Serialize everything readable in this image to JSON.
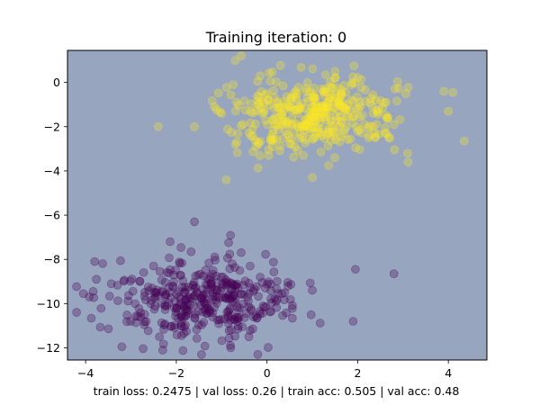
{
  "chart_data": {
    "type": "scatter",
    "title": "Training iteration: 0",
    "xlabel": "",
    "ylabel": "",
    "xlim": [
      -4.4,
      4.85
    ],
    "ylim": [
      -12.55,
      1.45
    ],
    "x_ticks": [
      -4,
      -2,
      0,
      2,
      4
    ],
    "x_tick_labels": [
      "−4",
      "−2",
      "0",
      "2",
      "4"
    ],
    "y_ticks": [
      0,
      -2,
      -4,
      -6,
      -8,
      -10,
      -12
    ],
    "y_tick_labels": [
      "0",
      "−2",
      "−4",
      "−6",
      "−8",
      "−10",
      "−12"
    ],
    "grid": false,
    "legend": "none",
    "background_color": "#97a5bf",
    "series": [
      {
        "color": "#440154",
        "alpha": 0.3,
        "cluster_center": [
          -1.5,
          -9.8
        ],
        "cluster_std": [
          1.0,
          0.9
        ],
        "count": 400,
        "sample_points": [
          [
            -1.6,
            -6.3
          ],
          [
            -3.8,
            -8.1
          ],
          [
            -4.05,
            -9.55
          ],
          [
            -3.2,
            -11.95
          ],
          [
            -2.3,
            -12.1
          ],
          [
            2.8,
            -8.65
          ],
          [
            1.95,
            -8.45
          ],
          [
            1.9,
            -10.8
          ],
          [
            -0.8,
            -12.0
          ],
          [
            -0.4,
            -11.5
          ],
          [
            -1.4,
            -9.6
          ],
          [
            -1.0,
            -9.3
          ],
          [
            -2.0,
            -10.2
          ],
          [
            -0.6,
            -8.5
          ],
          [
            -2.8,
            -9.0
          ],
          [
            0.2,
            -9.9
          ],
          [
            1.0,
            -9.4
          ],
          [
            -1.9,
            -11.0
          ],
          [
            -2.5,
            -8.3
          ],
          [
            -0.3,
            -10.6
          ]
        ]
      },
      {
        "color": "#fde725",
        "alpha": 0.3,
        "cluster_center": [
          1.0,
          -1.4
        ],
        "cluster_std": [
          0.95,
          0.95
        ],
        "count": 400,
        "sample_points": [
          [
            -0.7,
            1.0
          ],
          [
            -2.4,
            -2.0
          ],
          [
            -1.6,
            -2.0
          ],
          [
            -0.9,
            -4.4
          ],
          [
            1.0,
            -4.3
          ],
          [
            3.9,
            -0.4
          ],
          [
            4.1,
            -0.45
          ],
          [
            4.0,
            -1.3
          ],
          [
            4.35,
            -2.65
          ],
          [
            3.1,
            -3.2
          ],
          [
            0.5,
            -1.1
          ],
          [
            1.3,
            -1.7
          ],
          [
            0.0,
            -0.5
          ],
          [
            2.0,
            -2.2
          ],
          [
            1.5,
            0.5
          ],
          [
            -0.2,
            -2.7
          ],
          [
            2.4,
            -0.8
          ],
          [
            0.8,
            -3.3
          ],
          [
            2.8,
            -1.9
          ],
          [
            -1.0,
            -1.4
          ]
        ]
      }
    ],
    "footer_text": "train loss: 0.2475 | val loss: 0.26 | train acc: 0.505 | val acc: 0.48"
  }
}
